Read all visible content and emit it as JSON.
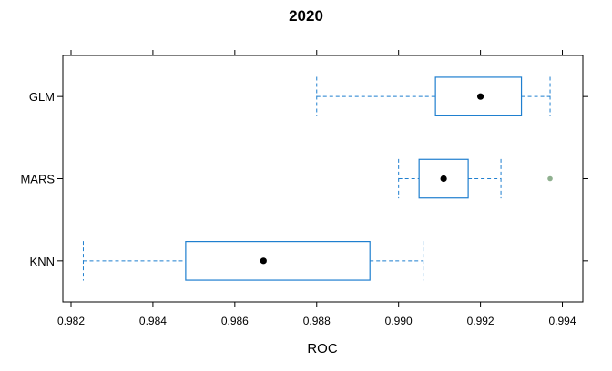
{
  "chart_data": {
    "type": "boxplot",
    "title": "2020",
    "xlabel": "ROC",
    "ylabel": "",
    "xlim": [
      0.9818,
      0.9945
    ],
    "x_ticks": [
      0.982,
      0.984,
      0.986,
      0.988,
      0.99,
      0.992,
      0.994
    ],
    "x_tick_labels": [
      "0.982",
      "0.984",
      "0.986",
      "0.988",
      "0.990",
      "0.992",
      "0.994"
    ],
    "categories": [
      "GLM",
      "MARS",
      "KNN"
    ],
    "series": [
      {
        "category": "GLM",
        "whisker_low": 0.988,
        "q1": 0.9909,
        "median": 0.992,
        "q3": 0.993,
        "whisker_high": 0.9937,
        "outliers": []
      },
      {
        "category": "MARS",
        "whisker_low": 0.99,
        "q1": 0.9905,
        "median": 0.9911,
        "q3": 0.9917,
        "whisker_high": 0.9925,
        "outliers": [
          0.9937
        ]
      },
      {
        "category": "KNN",
        "whisker_low": 0.9823,
        "q1": 0.9848,
        "median": 0.9867,
        "q3": 0.9893,
        "whisker_high": 0.9906,
        "outliers": []
      }
    ],
    "grid": false,
    "colors": {
      "box": "#1f7fcf",
      "median": "#000000",
      "outlier": "#8fb08f",
      "axis": "#000000"
    }
  }
}
